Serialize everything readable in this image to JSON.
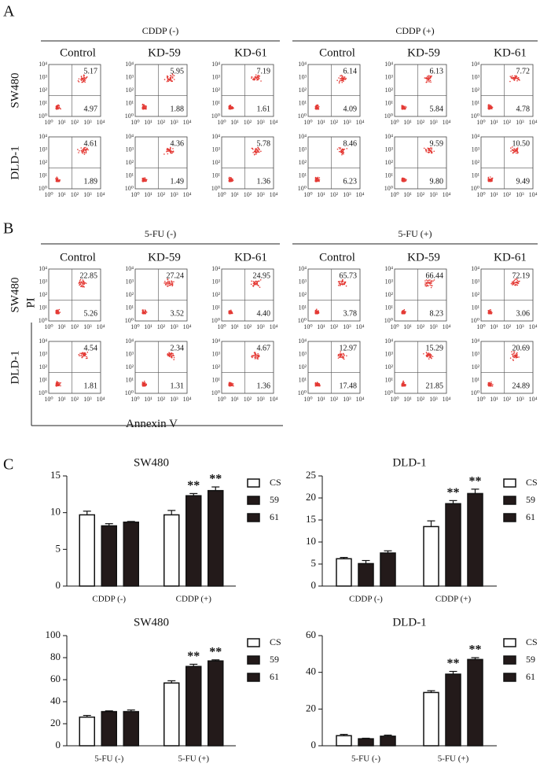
{
  "panel_a": {
    "label": "A",
    "groups": [
      "CDDP (-)",
      "CDDP (+)"
    ],
    "columns": [
      "Control",
      "KD-59",
      "KD-61"
    ],
    "rows": [
      {
        "name": "SW480",
        "upper_right": [
          "5.17",
          "5.95",
          "7.19",
          "6.14",
          "6.13",
          "7.72"
        ],
        "lower_right": [
          "4.97",
          "1.88",
          "1.61",
          "4.09",
          "5.84",
          "4.78"
        ]
      },
      {
        "name": "DLD-1",
        "upper_right": [
          "4.61",
          "4.36",
          "5.78",
          "8.46",
          "9.59",
          "10.50"
        ],
        "lower_right": [
          "1.89",
          "1.49",
          "1.36",
          "6.23",
          "9.80",
          "9.49"
        ]
      }
    ]
  },
  "panel_b": {
    "label": "B",
    "groups": [
      "5-FU (-)",
      "5-FU (+)"
    ],
    "columns": [
      "Control",
      "KD-59",
      "KD-61"
    ],
    "rows": [
      {
        "name": "SW480",
        "upper_right": [
          "22.85",
          "27.24",
          "24.95",
          "65.73",
          "66.44",
          "72.19"
        ],
        "lower_right": [
          "5.26",
          "3.52",
          "4.40",
          "3.78",
          "8.23",
          "3.06"
        ]
      },
      {
        "name": "DLD-1",
        "upper_right": [
          "4.54",
          "2.34",
          "4.67",
          "12.97",
          "15.29",
          "20.69"
        ],
        "lower_right": [
          "1.81",
          "1.31",
          "1.36",
          "17.48",
          "21.85",
          "24.89"
        ]
      }
    ],
    "y_label": "PI",
    "x_label": "Annexin V"
  },
  "flow_ticks": [
    "10⁰",
    "10¹",
    "10²",
    "10³",
    "10⁴"
  ],
  "panel_c_label": "C",
  "chart_data": [
    {
      "type": "bar",
      "title": "SW480",
      "categories": [
        "CDDP (-)",
        "CDDP (+)"
      ],
      "series": [
        {
          "name": "CS",
          "color": "#ffffff",
          "values": [
            9.7,
            9.7
          ],
          "errors": [
            0.5,
            0.6
          ],
          "significance": [
            null,
            null
          ]
        },
        {
          "name": "59",
          "color": "#231a1a",
          "values": [
            8.2,
            12.3
          ],
          "errors": [
            0.3,
            0.3
          ],
          "significance": [
            null,
            "**"
          ]
        },
        {
          "name": "61",
          "color": "#231a1a",
          "values": [
            8.7,
            13.0
          ],
          "errors": [
            0.1,
            0.5
          ],
          "significance": [
            null,
            "**"
          ]
        }
      ],
      "ylim": [
        0,
        15
      ],
      "yticks": [
        0,
        5,
        10,
        15
      ]
    },
    {
      "type": "bar",
      "title": "DLD-1",
      "categories": [
        "CDDP (-)",
        "CDDP (+)"
      ],
      "series": [
        {
          "name": "CS",
          "color": "#ffffff",
          "values": [
            6.2,
            13.5
          ],
          "errors": [
            0.3,
            1.3
          ],
          "significance": [
            null,
            null
          ]
        },
        {
          "name": "59",
          "color": "#231a1a",
          "values": [
            5.1,
            18.7
          ],
          "errors": [
            0.7,
            0.7
          ],
          "significance": [
            null,
            "**"
          ]
        },
        {
          "name": "61",
          "color": "#231a1a",
          "values": [
            7.5,
            21.0
          ],
          "errors": [
            0.5,
            1.0
          ],
          "significance": [
            null,
            "**"
          ]
        }
      ],
      "ylim": [
        0,
        25
      ],
      "yticks": [
        0,
        5,
        10,
        15,
        20,
        25
      ]
    },
    {
      "type": "bar",
      "title": "SW480",
      "categories": [
        "5-FU (-)",
        "5-FU (+)"
      ],
      "series": [
        {
          "name": "CS",
          "color": "#ffffff",
          "values": [
            26,
            57
          ],
          "errors": [
            1.5,
            2
          ],
          "significance": [
            null,
            null
          ]
        },
        {
          "name": "59",
          "color": "#231a1a",
          "values": [
            31,
            72
          ],
          "errors": [
            0.7,
            2
          ],
          "significance": [
            null,
            "**"
          ]
        },
        {
          "name": "61",
          "color": "#231a1a",
          "values": [
            31,
            77
          ],
          "errors": [
            1.5,
            1
          ],
          "significance": [
            null,
            "**"
          ]
        }
      ],
      "ylim": [
        0,
        100
      ],
      "yticks": [
        0,
        20,
        40,
        60,
        80,
        100
      ]
    },
    {
      "type": "bar",
      "title": "DLD-1",
      "categories": [
        "5-FU (-)",
        "5-FU (+)"
      ],
      "series": [
        {
          "name": "CS",
          "color": "#ffffff",
          "values": [
            5.5,
            29
          ],
          "errors": [
            0.7,
            1
          ],
          "significance": [
            null,
            null
          ]
        },
        {
          "name": "59",
          "color": "#231a1a",
          "values": [
            3.8,
            39
          ],
          "errors": [
            0.3,
            1.5
          ],
          "significance": [
            null,
            "**"
          ]
        },
        {
          "name": "61",
          "color": "#231a1a",
          "values": [
            5.2,
            47
          ],
          "errors": [
            0.6,
            1
          ],
          "significance": [
            null,
            "**"
          ]
        }
      ],
      "ylim": [
        0,
        60
      ],
      "yticks": [
        0,
        20,
        40,
        60
      ]
    }
  ]
}
